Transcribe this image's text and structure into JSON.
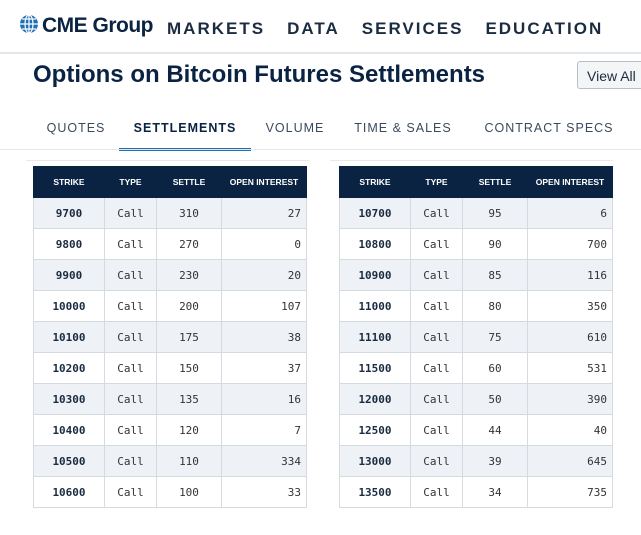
{
  "header": {
    "logo_text": "CME Group",
    "nav": [
      "MARKETS",
      "DATA",
      "SERVICES",
      "EDUCATION"
    ]
  },
  "page": {
    "title": "Options on Bitcoin Futures Settlements",
    "view_button": "View All"
  },
  "tabs": [
    "QUOTES",
    "SETTLEMENTS",
    "VOLUME",
    "TIME & SALES",
    "CONTRACT SPECS"
  ],
  "active_tab": "SETTLEMENTS",
  "table_headers": [
    "STRIKE",
    "TYPE",
    "SETTLE",
    "OPEN INTEREST"
  ],
  "left_rows": [
    {
      "strike": "9700",
      "type": "Call",
      "settle": "310",
      "oi": "27"
    },
    {
      "strike": "9800",
      "type": "Call",
      "settle": "270",
      "oi": "0"
    },
    {
      "strike": "9900",
      "type": "Call",
      "settle": "230",
      "oi": "20"
    },
    {
      "strike": "10000",
      "type": "Call",
      "settle": "200",
      "oi": "107"
    },
    {
      "strike": "10100",
      "type": "Call",
      "settle": "175",
      "oi": "38"
    },
    {
      "strike": "10200",
      "type": "Call",
      "settle": "150",
      "oi": "37"
    },
    {
      "strike": "10300",
      "type": "Call",
      "settle": "135",
      "oi": "16"
    },
    {
      "strike": "10400",
      "type": "Call",
      "settle": "120",
      "oi": "7"
    },
    {
      "strike": "10500",
      "type": "Call",
      "settle": "110",
      "oi": "334"
    },
    {
      "strike": "10600",
      "type": "Call",
      "settle": "100",
      "oi": "33"
    }
  ],
  "right_rows": [
    {
      "strike": "10700",
      "type": "Call",
      "settle": "95",
      "oi": "6"
    },
    {
      "strike": "10800",
      "type": "Call",
      "settle": "90",
      "oi": "700"
    },
    {
      "strike": "10900",
      "type": "Call",
      "settle": "85",
      "oi": "116"
    },
    {
      "strike": "11000",
      "type": "Call",
      "settle": "80",
      "oi": "350"
    },
    {
      "strike": "11100",
      "type": "Call",
      "settle": "75",
      "oi": "610"
    },
    {
      "strike": "11500",
      "type": "Call",
      "settle": "60",
      "oi": "531"
    },
    {
      "strike": "12000",
      "type": "Call",
      "settle": "50",
      "oi": "390"
    },
    {
      "strike": "12500",
      "type": "Call",
      "settle": "44",
      "oi": "40"
    },
    {
      "strike": "13000",
      "type": "Call",
      "settle": "39",
      "oi": "645"
    },
    {
      "strike": "13500",
      "type": "Call",
      "settle": "34",
      "oi": "735"
    }
  ],
  "colors": {
    "navy": "#0b2343",
    "accent": "#1f6fb5",
    "row_alt": "#eef1f5"
  },
  "icons": {
    "logo": "globe-icon"
  }
}
